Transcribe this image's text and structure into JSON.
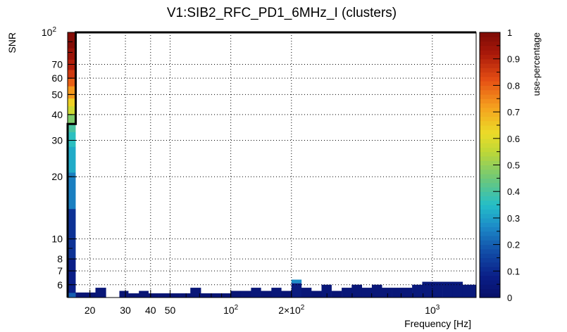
{
  "chart_data": {
    "type": "heatmap",
    "title": "V1:SIB2_RFC_PD1_6MHz_I (clusters)",
    "xlabel": "Frequency [Hz]",
    "ylabel": "SNR",
    "zlabel": "use-percentage",
    "x_scale": "log",
    "y_scale": "log",
    "xlim": [
      15.5,
      1650
    ],
    "ylim": [
      5.2,
      100
    ],
    "zlim": [
      0,
      1
    ],
    "grid": true,
    "x_ticks": [
      {
        "value": 20,
        "label": "20"
      },
      {
        "value": 30,
        "label": "30"
      },
      {
        "value": 40,
        "label": "40"
      },
      {
        "value": 50,
        "label": "50"
      },
      {
        "value": 100,
        "label": "10",
        "exp": "2"
      },
      {
        "value": 200,
        "label": "2×10",
        "exp": "2"
      },
      {
        "value": 1000,
        "label": "10",
        "exp": "3"
      }
    ],
    "y_ticks": [
      {
        "value": 6,
        "label": "6"
      },
      {
        "value": 7,
        "label": "7"
      },
      {
        "value": 8,
        "label": "8"
      },
      {
        "value": 10,
        "label": "10"
      },
      {
        "value": 20,
        "label": "20"
      },
      {
        "value": 30,
        "label": "30"
      },
      {
        "value": 40,
        "label": "40"
      },
      {
        "value": 50,
        "label": "50"
      },
      {
        "value": 60,
        "label": "60"
      },
      {
        "value": 70,
        "label": "70"
      },
      {
        "value": 100,
        "label": "10",
        "exp": "2"
      }
    ],
    "z_ticks": [
      {
        "value": 0,
        "label": "0"
      },
      {
        "value": 0.1,
        "label": "0.1"
      },
      {
        "value": 0.2,
        "label": "0.2"
      },
      {
        "value": 0.3,
        "label": "0.3"
      },
      {
        "value": 0.4,
        "label": "0.4"
      },
      {
        "value": 0.5,
        "label": "0.5"
      },
      {
        "value": 0.6,
        "label": "0.6"
      },
      {
        "value": 0.7,
        "label": "0.7"
      },
      {
        "value": 0.8,
        "label": "0.8"
      },
      {
        "value": 0.9,
        "label": "0.9"
      },
      {
        "value": 1,
        "label": "1"
      }
    ],
    "column_first": {
      "x_range": [
        15.5,
        17.0
      ],
      "cells": [
        {
          "y0": 5.2,
          "y1": 5.5,
          "z": 0.2
        },
        {
          "y0": 5.5,
          "y1": 8.0,
          "z": 0.08
        },
        {
          "y0": 8.0,
          "y1": 14.0,
          "z": 0.12
        },
        {
          "y0": 14.0,
          "y1": 21.0,
          "z": 0.25
        },
        {
          "y0": 21.0,
          "y1": 28.0,
          "z": 0.32
        },
        {
          "y0": 28.0,
          "y1": 33.0,
          "z": 0.36
        },
        {
          "y0": 33.0,
          "y1": 36.0,
          "z": 0.4
        },
        {
          "y0": 36.0,
          "y1": 40.0,
          "z": 0.47
        },
        {
          "y0": 40.0,
          "y1": 44.0,
          "z": 0.57
        },
        {
          "y0": 44.0,
          "y1": 48.0,
          "z": 0.64
        },
        {
          "y0": 48.0,
          "y1": 55.0,
          "z": 0.73
        },
        {
          "y0": 55.0,
          "y1": 60.0,
          "z": 0.8
        },
        {
          "y0": 60.0,
          "y1": 66.0,
          "z": 0.86
        },
        {
          "y0": 66.0,
          "y1": 74.0,
          "z": 0.91
        },
        {
          "y0": 74.0,
          "y1": 84.0,
          "z": 0.95
        },
        {
          "y0": 84.0,
          "y1": 100.0,
          "z": 0.99
        }
      ]
    },
    "columns": [
      {
        "x0": 17.0,
        "x1": 19.0,
        "top": 5.5,
        "z": 0.03
      },
      {
        "x0": 19.0,
        "x1": 21.3,
        "top": 5.5,
        "z": 0.03
      },
      {
        "x0": 21.3,
        "x1": 24.0,
        "top": 5.8,
        "z": 0.04
      },
      {
        "x0": 28.0,
        "x1": 31.0,
        "top": 5.6,
        "z": 0.03
      },
      {
        "x0": 31.0,
        "x1": 35.0,
        "top": 5.45,
        "z": 0.03
      },
      {
        "x0": 35.0,
        "x1": 39.0,
        "top": 5.6,
        "z": 0.03
      },
      {
        "x0": 39.0,
        "x1": 44.0,
        "top": 5.45,
        "z": 0.03
      },
      {
        "x0": 44.0,
        "x1": 50.0,
        "top": 5.45,
        "z": 0.03
      },
      {
        "x0": 50.0,
        "x1": 56.0,
        "top": 5.45,
        "z": 0.03
      },
      {
        "x0": 56.0,
        "x1": 63.0,
        "top": 5.45,
        "z": 0.03
      },
      {
        "x0": 63.0,
        "x1": 71.0,
        "top": 5.8,
        "z": 0.04
      },
      {
        "x0": 71.0,
        "x1": 79.0,
        "top": 5.45,
        "z": 0.03
      },
      {
        "x0": 79.0,
        "x1": 89.0,
        "top": 5.45,
        "z": 0.03
      },
      {
        "x0": 89.0,
        "x1": 100.0,
        "top": 5.45,
        "z": 0.03
      },
      {
        "x0": 100.0,
        "x1": 112.0,
        "top": 5.6,
        "z": 0.03
      },
      {
        "x0": 112.0,
        "x1": 126.0,
        "top": 5.6,
        "z": 0.03
      },
      {
        "x0": 126.0,
        "x1": 141.0,
        "top": 5.8,
        "z": 0.04
      },
      {
        "x0": 141.0,
        "x1": 159.0,
        "top": 5.6,
        "z": 0.03
      },
      {
        "x0": 159.0,
        "x1": 178.0,
        "top": 5.8,
        "z": 0.04
      },
      {
        "x0": 178.0,
        "x1": 200.0,
        "top": 5.6,
        "z": 0.03
      },
      {
        "x0": 200.0,
        "x1": 224.0,
        "top": 6.1,
        "z": 0.06,
        "cap": {
          "y1": 6.35,
          "z": 0.27
        }
      },
      {
        "x0": 224.0,
        "x1": 251.0,
        "top": 5.8,
        "z": 0.04
      },
      {
        "x0": 251.0,
        "x1": 282.0,
        "top": 5.6,
        "z": 0.03
      },
      {
        "x0": 282.0,
        "x1": 316.0,
        "top": 6.0,
        "z": 0.04
      },
      {
        "x0": 316.0,
        "x1": 355.0,
        "top": 5.6,
        "z": 0.03
      },
      {
        "x0": 355.0,
        "x1": 398.0,
        "top": 5.8,
        "z": 0.04
      },
      {
        "x0": 398.0,
        "x1": 447.0,
        "top": 6.0,
        "z": 0.04
      },
      {
        "x0": 447.0,
        "x1": 501.0,
        "top": 5.8,
        "z": 0.04
      },
      {
        "x0": 501.0,
        "x1": 562.0,
        "top": 6.0,
        "z": 0.04
      },
      {
        "x0": 562.0,
        "x1": 631.0,
        "top": 5.8,
        "z": 0.04
      },
      {
        "x0": 631.0,
        "x1": 708.0,
        "top": 5.8,
        "z": 0.04
      },
      {
        "x0": 708.0,
        "x1": 794.0,
        "top": 5.8,
        "z": 0.04
      },
      {
        "x0": 794.0,
        "x1": 891.0,
        "top": 6.0,
        "z": 0.05
      },
      {
        "x0": 891.0,
        "x1": 1000.0,
        "top": 6.2,
        "z": 0.05
      },
      {
        "x0": 1000.0,
        "x1": 1122.0,
        "top": 6.2,
        "z": 0.05
      },
      {
        "x0": 1122.0,
        "x1": 1259.0,
        "top": 6.2,
        "z": 0.05
      },
      {
        "x0": 1259.0,
        "x1": 1413.0,
        "top": 6.2,
        "z": 0.05
      },
      {
        "x0": 1413.0,
        "x1": 1650.0,
        "top": 6.0,
        "z": 0.05
      }
    ],
    "threshold_line": [
      {
        "x": 15.5,
        "y": 5.2
      },
      {
        "x": 15.5,
        "y": 36.0
      },
      {
        "x": 17.0,
        "y": 36.0
      },
      {
        "x": 17.0,
        "y": 100.0
      },
      {
        "x": 1650.0,
        "y": 100.0
      }
    ]
  }
}
